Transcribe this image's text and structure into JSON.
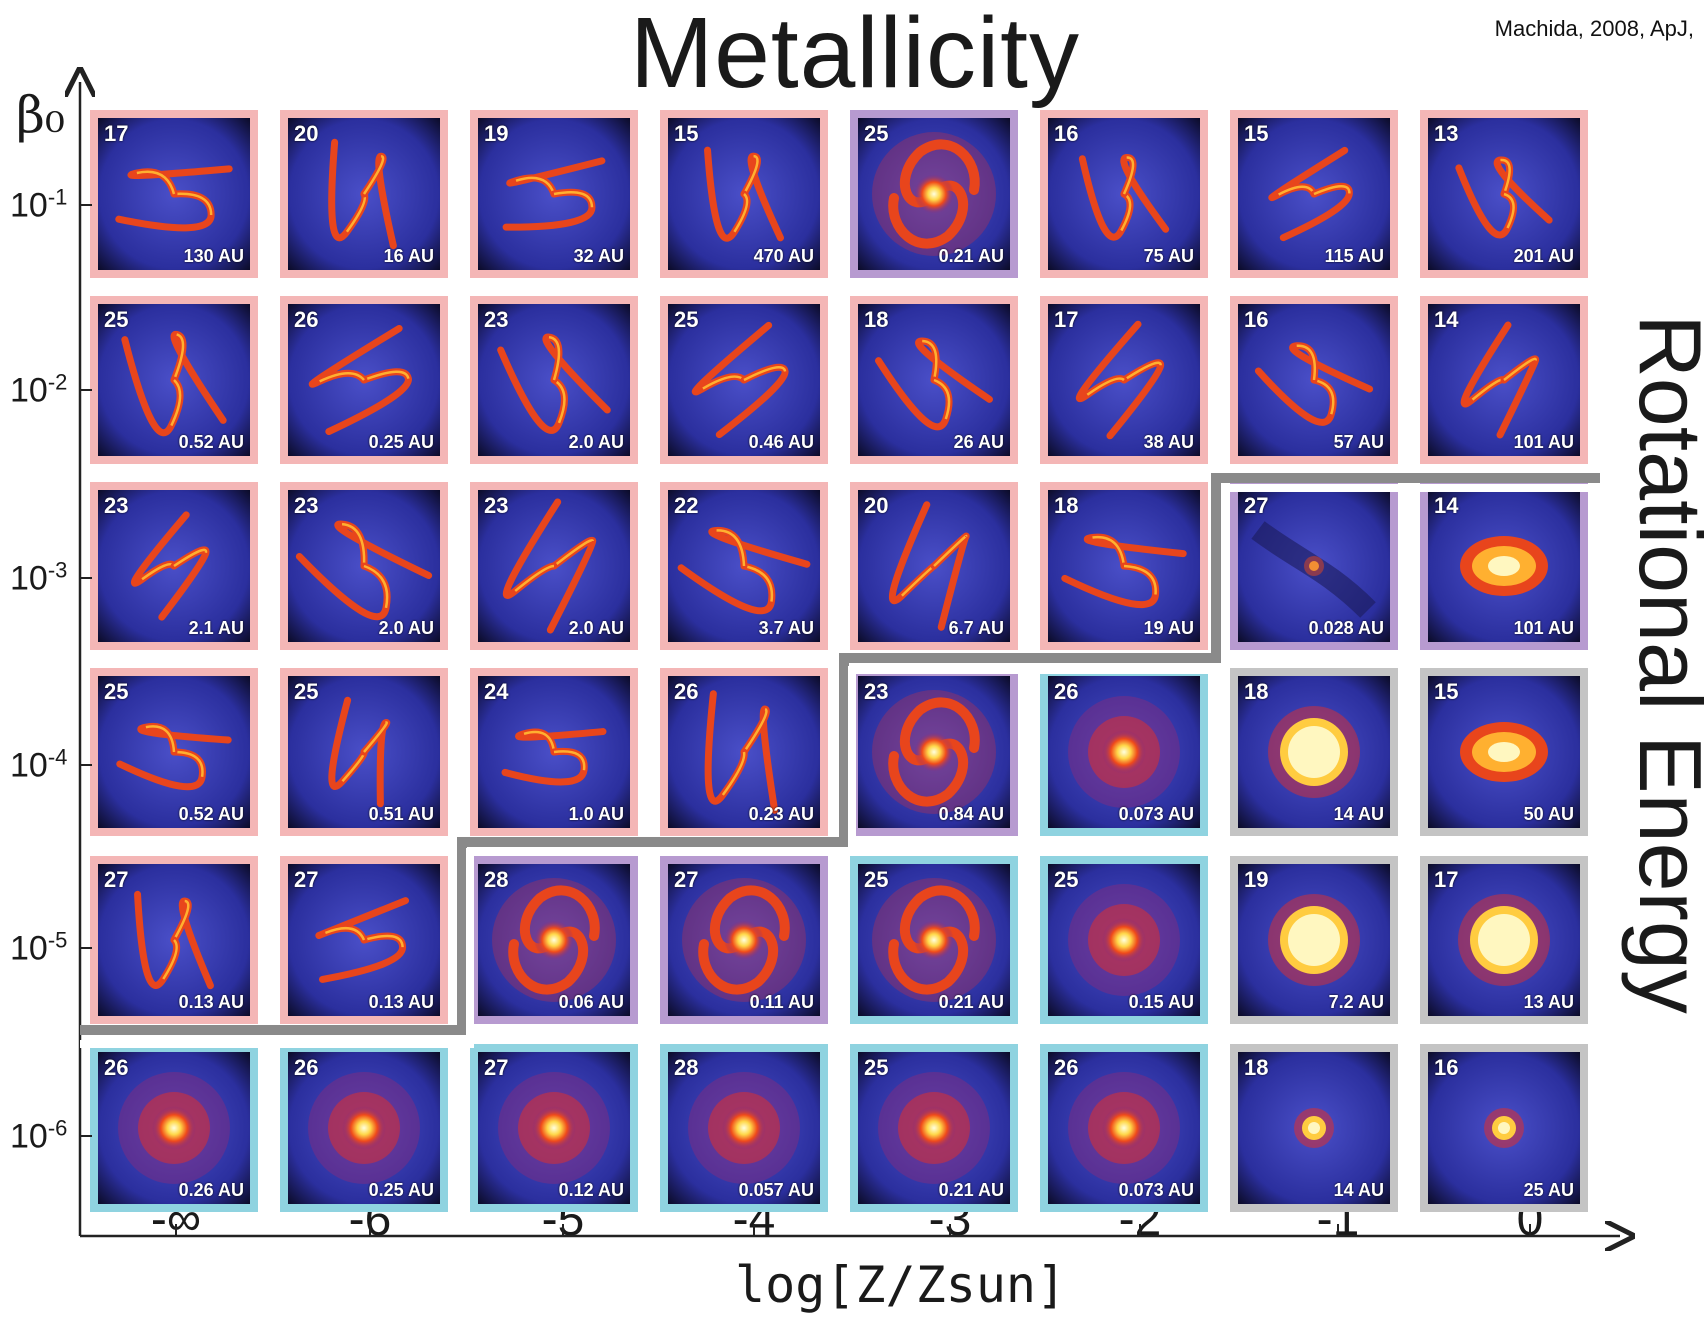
{
  "title": "Metallicity",
  "citation": "Machida, 2008, ApJ,",
  "side_label": "Rotational Energy",
  "y_axis": {
    "label": "β₀",
    "ticks": [
      {
        "base": "10",
        "exp": "-1"
      },
      {
        "base": "10",
        "exp": "-2"
      },
      {
        "base": "10",
        "exp": "-3"
      },
      {
        "base": "10",
        "exp": "-4"
      },
      {
        "base": "10",
        "exp": "-5"
      },
      {
        "base": "10",
        "exp": "-6"
      }
    ]
  },
  "x_axis": {
    "label": "log[Z/Zsun]",
    "ticks": [
      "-∞",
      "-6",
      "-5",
      "-4",
      "-3",
      "-2",
      "-1",
      "0"
    ]
  },
  "colors": {
    "fragmentation": "#f4b6b6",
    "single_core": "#8fd3e0",
    "first_core": "#c4c4c4",
    "transitional": "#b79ad0",
    "boundary_white": "#ffffff",
    "boundary_gray": "#808080"
  },
  "grid": [
    [
      {
        "num": "17",
        "scale": "130 AU",
        "type": "fragment"
      },
      {
        "num": "20",
        "scale": "16 AU",
        "type": "fragment"
      },
      {
        "num": "19",
        "scale": "32 AU",
        "type": "fragment"
      },
      {
        "num": "15",
        "scale": "470 AU",
        "type": "fragment"
      },
      {
        "num": "25",
        "scale": "0.21 AU",
        "type": "spiral"
      },
      {
        "num": "16",
        "scale": "75 AU",
        "type": "fragment"
      },
      {
        "num": "15",
        "scale": "115 AU",
        "type": "fragment"
      },
      {
        "num": "13",
        "scale": "201 AU",
        "type": "fragment"
      }
    ],
    [
      {
        "num": "25",
        "scale": "0.52 AU",
        "type": "fragment"
      },
      {
        "num": "26",
        "scale": "0.25 AU",
        "type": "fragment"
      },
      {
        "num": "23",
        "scale": "2.0 AU",
        "type": "fragment"
      },
      {
        "num": "25",
        "scale": "0.46 AU",
        "type": "fragment"
      },
      {
        "num": "18",
        "scale": "26 AU",
        "type": "fragment"
      },
      {
        "num": "17",
        "scale": "38 AU",
        "type": "fragment"
      },
      {
        "num": "16",
        "scale": "57 AU",
        "type": "fragment"
      },
      {
        "num": "14",
        "scale": "101 AU",
        "type": "fragment"
      }
    ],
    [
      {
        "num": "23",
        "scale": "2.1 AU",
        "type": "fragment"
      },
      {
        "num": "23",
        "scale": "2.0 AU",
        "type": "fragment"
      },
      {
        "num": "23",
        "scale": "2.0 AU",
        "type": "fragment"
      },
      {
        "num": "22",
        "scale": "3.7 AU",
        "type": "fragment"
      },
      {
        "num": "20",
        "scale": "6.7 AU",
        "type": "fragment"
      },
      {
        "num": "18",
        "scale": "19 AU",
        "type": "fragment"
      },
      {
        "num": "27",
        "scale": "0.028 AU",
        "type": "small"
      },
      {
        "num": "14",
        "scale": "101 AU",
        "type": "disk"
      }
    ],
    [
      {
        "num": "25",
        "scale": "0.52 AU",
        "type": "fragment"
      },
      {
        "num": "25",
        "scale": "0.51 AU",
        "type": "fragment"
      },
      {
        "num": "24",
        "scale": "1.0 AU",
        "type": "fragment"
      },
      {
        "num": "26",
        "scale": "0.23 AU",
        "type": "fragment"
      },
      {
        "num": "23",
        "scale": "0.84 AU",
        "type": "spiral"
      },
      {
        "num": "26",
        "scale": "0.073 AU",
        "type": "core"
      },
      {
        "num": "18",
        "scale": "14 AU",
        "type": "bigcore"
      },
      {
        "num": "15",
        "scale": "50 AU",
        "type": "disk"
      }
    ],
    [
      {
        "num": "27",
        "scale": "0.13 AU",
        "type": "fragment"
      },
      {
        "num": "27",
        "scale": "0.13 AU",
        "type": "fragment"
      },
      {
        "num": "28",
        "scale": "0.06 AU",
        "type": "spiral"
      },
      {
        "num": "27",
        "scale": "0.11 AU",
        "type": "spiral"
      },
      {
        "num": "25",
        "scale": "0.21 AU",
        "type": "spiral"
      },
      {
        "num": "25",
        "scale": "0.15 AU",
        "type": "core"
      },
      {
        "num": "19",
        "scale": "7.2 AU",
        "type": "bigcore"
      },
      {
        "num": "17",
        "scale": "13 AU",
        "type": "bigcore"
      }
    ],
    [
      {
        "num": "26",
        "scale": "0.26 AU",
        "type": "core"
      },
      {
        "num": "26",
        "scale": "0.25 AU",
        "type": "core"
      },
      {
        "num": "27",
        "scale": "0.12 AU",
        "type": "core"
      },
      {
        "num": "28",
        "scale": "0.057 AU",
        "type": "core"
      },
      {
        "num": "25",
        "scale": "0.21 AU",
        "type": "core"
      },
      {
        "num": "26",
        "scale": "0.073 AU",
        "type": "core"
      },
      {
        "num": "18",
        "scale": "14 AU",
        "type": "smallcore"
      },
      {
        "num": "16",
        "scale": "25 AU",
        "type": "smallcore"
      }
    ]
  ]
}
